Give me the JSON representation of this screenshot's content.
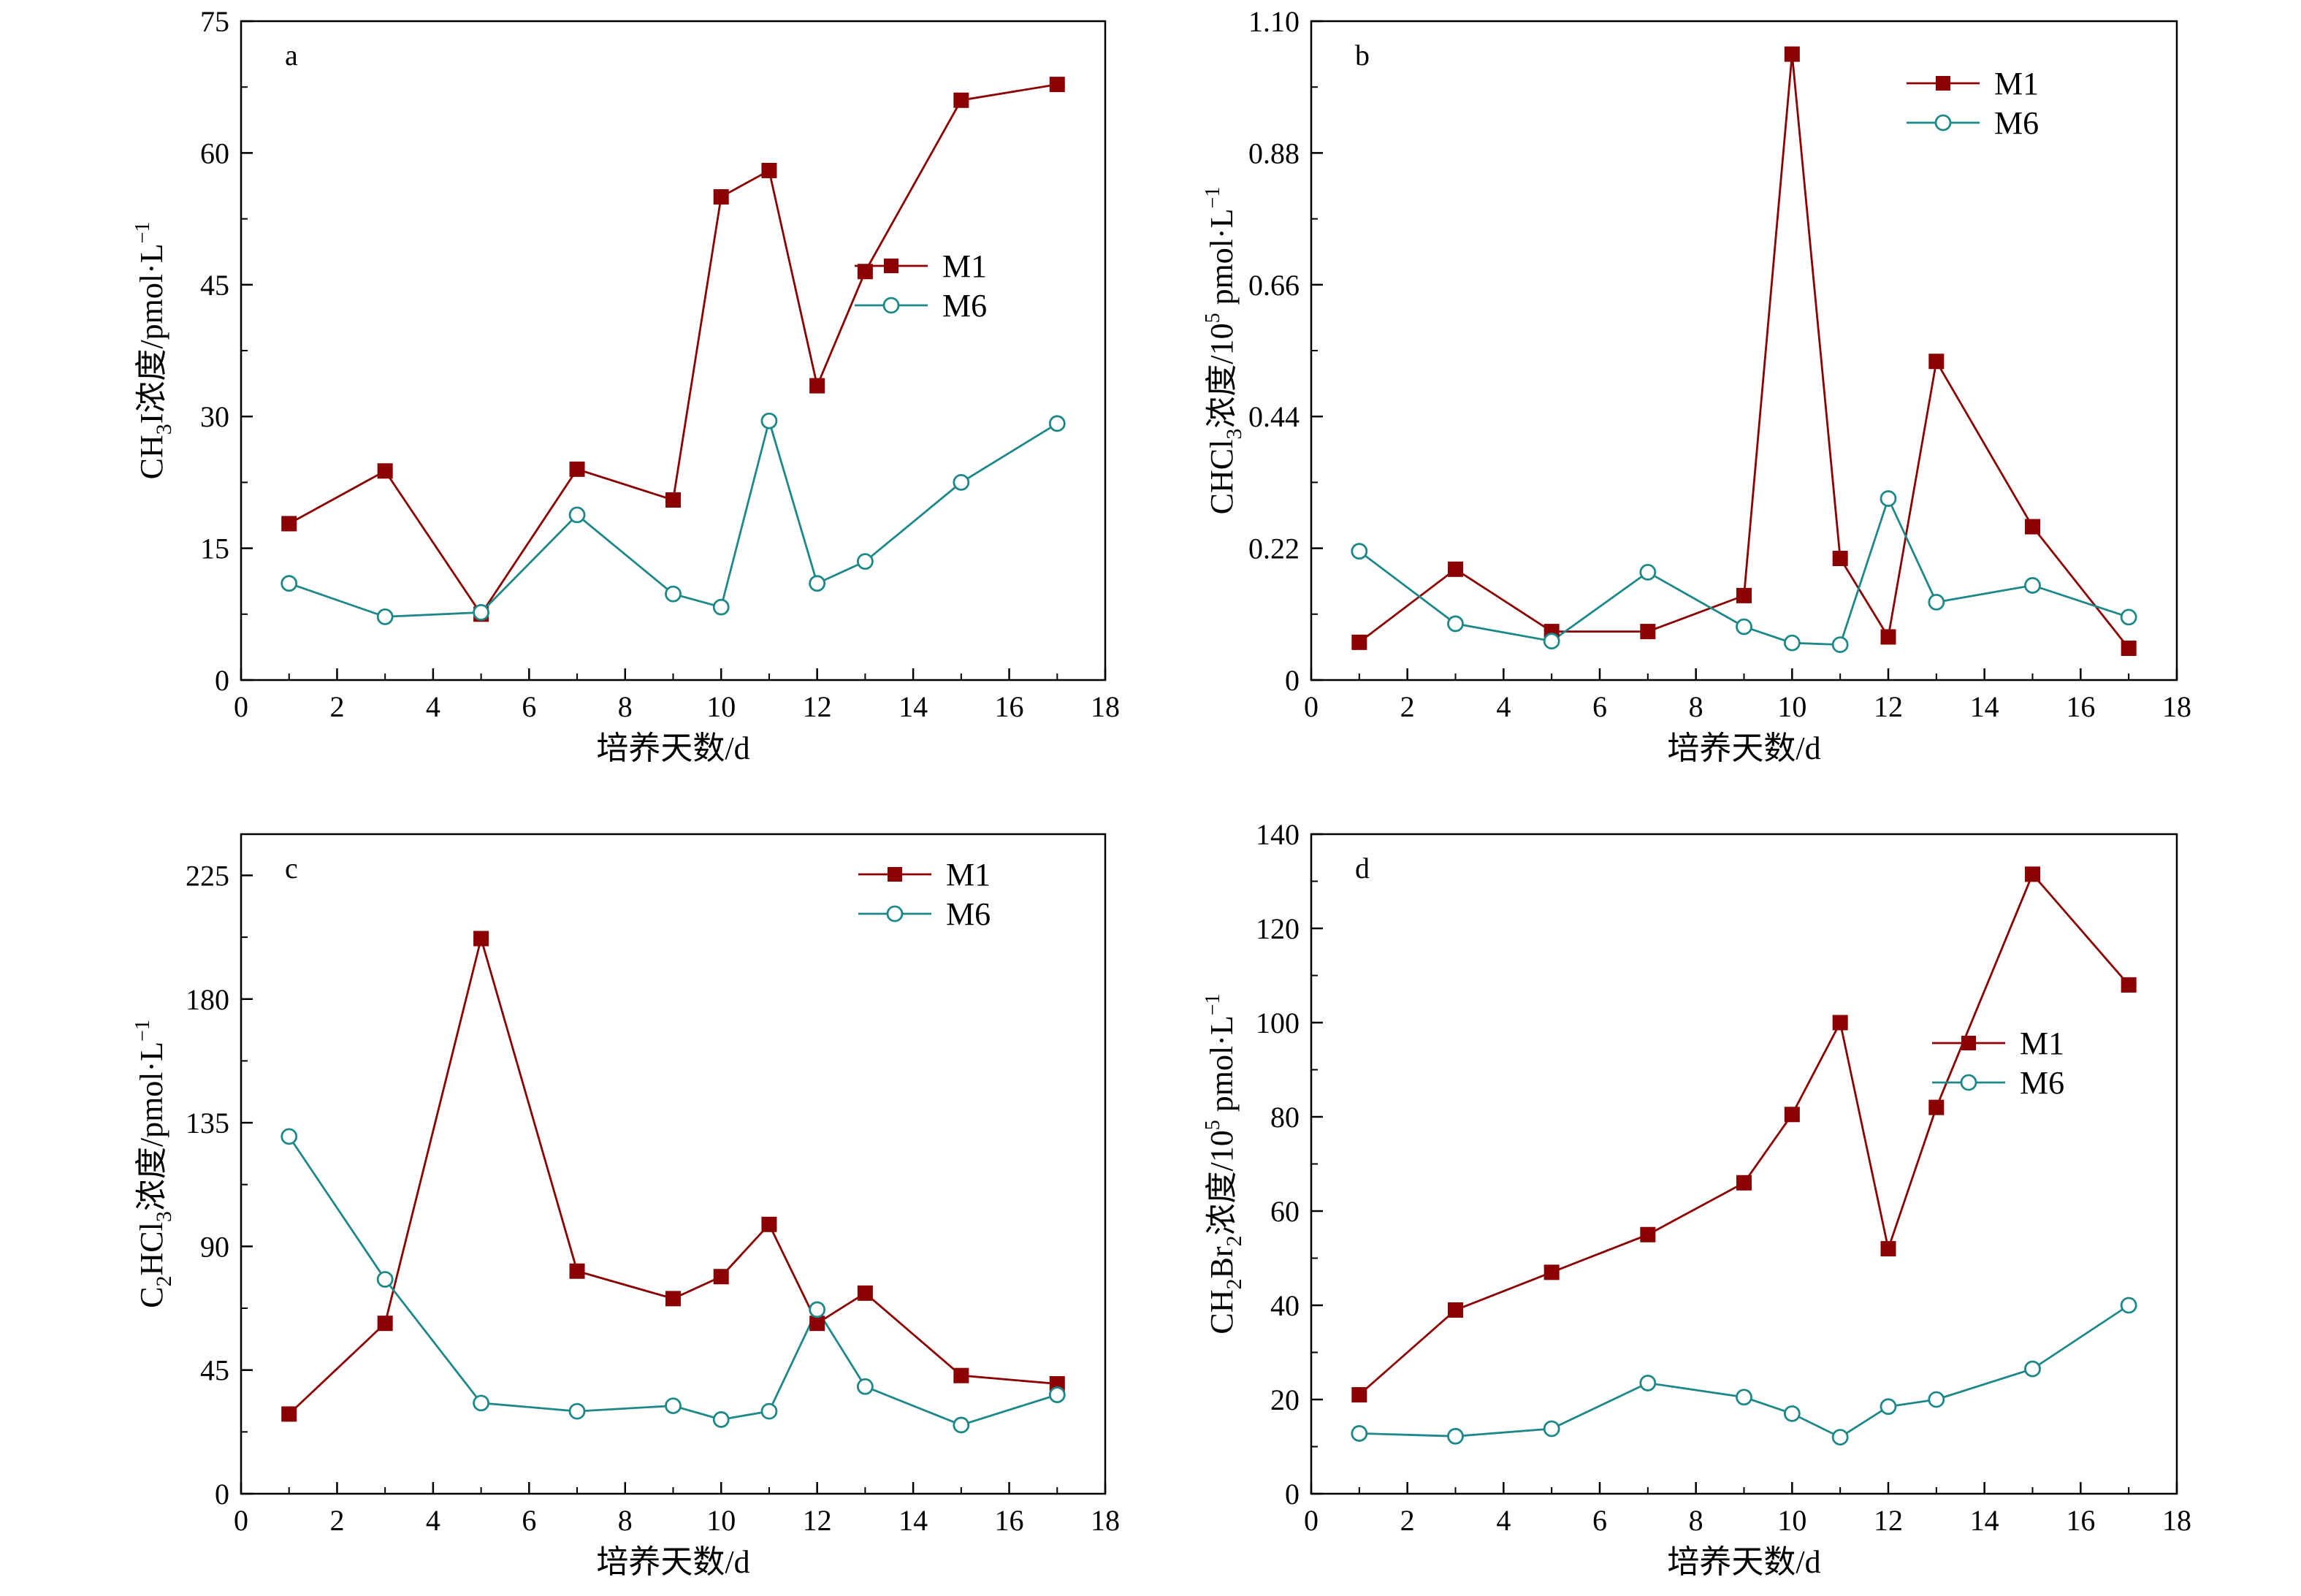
{
  "colors": {
    "M1": "#8B0000",
    "M6": "#1E8888",
    "axis": "#000000"
  },
  "legend_names": [
    "M1",
    "M6"
  ],
  "chart_data": [
    {
      "id": "a",
      "type": "line",
      "panel_label": "a",
      "xlabel": "培养天数/d",
      "ylabel": {
        "parts": [
          {
            "t": "CH"
          },
          {
            "t": "3",
            "sub": true
          },
          {
            "t": "I浓度/pmol·L"
          },
          {
            "t": "−1",
            "sup": true
          }
        ]
      },
      "xlim": [
        0,
        18
      ],
      "xticks": [
        0,
        2,
        4,
        6,
        8,
        10,
        12,
        14,
        16,
        18
      ],
      "ylim": [
        0,
        75
      ],
      "yticks": [
        0,
        15,
        30,
        45,
        60,
        75
      ],
      "ytick_labels": [
        "0",
        "15",
        "30",
        "45",
        "60",
        "75"
      ],
      "legend_position": "right-middle",
      "x": [
        1,
        3,
        5,
        7,
        9,
        10,
        11,
        12,
        13,
        15,
        17
      ],
      "series": [
        {
          "name": "M1",
          "marker": "square",
          "values": [
            17.8,
            23.8,
            7.5,
            24.0,
            20.5,
            55.0,
            58.0,
            33.5,
            46.5,
            66.0,
            67.8
          ]
        },
        {
          "name": "M6",
          "marker": "circle",
          "values": [
            11.0,
            7.2,
            7.7,
            18.8,
            9.8,
            8.3,
            29.5,
            11.0,
            13.5,
            22.5,
            29.2
          ]
        }
      ]
    },
    {
      "id": "b",
      "type": "line",
      "panel_label": "b",
      "xlabel": "培养天数/d",
      "ylabel": {
        "parts": [
          {
            "t": "CHCl"
          },
          {
            "t": "3",
            "sub": true
          },
          {
            "t": "浓度/10"
          },
          {
            "t": "5",
            "sup": true
          },
          {
            "t": " pmol·L"
          },
          {
            "t": "−1",
            "sup": true
          }
        ]
      },
      "xlim": [
        0,
        18
      ],
      "xticks": [
        0,
        2,
        4,
        6,
        8,
        10,
        12,
        14,
        16,
        18
      ],
      "ylim": [
        0,
        1.1
      ],
      "yticks": [
        0,
        0.22,
        0.44,
        0.66,
        0.88,
        1.1
      ],
      "ytick_labels": [
        "0",
        "0.22",
        "0.44",
        "0.66",
        "0.88",
        "1.10"
      ],
      "legend_position": "top-right",
      "x": [
        1,
        3,
        5,
        7,
        9,
        10,
        11,
        12,
        13,
        15,
        17
      ],
      "series": [
        {
          "name": "M1",
          "marker": "square",
          "values": [
            0.063,
            0.185,
            0.081,
            0.081,
            0.141,
            1.045,
            0.203,
            0.072,
            0.532,
            0.256,
            0.053
          ]
        },
        {
          "name": "M6",
          "marker": "circle",
          "values": [
            0.215,
            0.094,
            0.065,
            0.18,
            0.089,
            0.062,
            0.059,
            0.303,
            0.13,
            0.158,
            0.105
          ]
        }
      ]
    },
    {
      "id": "c",
      "type": "line",
      "panel_label": "c",
      "xlabel": "培养天数/d",
      "ylabel": {
        "parts": [
          {
            "t": "C"
          },
          {
            "t": "2",
            "sub": true
          },
          {
            "t": "HCl"
          },
          {
            "t": "3",
            "sub": true
          },
          {
            "t": "浓度/pmol·L"
          },
          {
            "t": "−1",
            "sup": true
          }
        ]
      },
      "xlim": [
        0,
        18
      ],
      "xticks": [
        0,
        2,
        4,
        6,
        8,
        10,
        12,
        14,
        16,
        18
      ],
      "ylim": [
        0,
        240
      ],
      "yticks": [
        0,
        45,
        90,
        135,
        180,
        225
      ],
      "ytick_labels": [
        "0",
        "45",
        "90",
        "135",
        "180",
        "225"
      ],
      "legend_position": "top-right",
      "x": [
        1,
        3,
        5,
        7,
        9,
        10,
        11,
        12,
        13,
        15,
        17
      ],
      "series": [
        {
          "name": "M1",
          "marker": "square",
          "values": [
            29,
            62,
            202,
            81,
            71,
            79,
            98,
            62,
            73,
            43,
            40
          ]
        },
        {
          "name": "M6",
          "marker": "circle",
          "values": [
            130,
            78,
            33,
            30,
            32,
            27,
            30,
            67,
            39,
            25,
            36
          ]
        }
      ]
    },
    {
      "id": "d",
      "type": "line",
      "panel_label": "d",
      "xlabel": "培养天数/d",
      "ylabel": {
        "parts": [
          {
            "t": "CH"
          },
          {
            "t": "2",
            "sub": true
          },
          {
            "t": "Br"
          },
          {
            "t": "2",
            "sub": true
          },
          {
            "t": "浓度/10"
          },
          {
            "t": "5",
            "sup": true
          },
          {
            "t": " pmol·L"
          },
          {
            "t": "−1",
            "sup": true
          }
        ]
      },
      "xlim": [
        0,
        18
      ],
      "xticks": [
        0,
        2,
        4,
        6,
        8,
        10,
        12,
        14,
        16,
        18
      ],
      "ylim": [
        0,
        140
      ],
      "yticks": [
        0,
        20,
        40,
        60,
        80,
        100,
        120,
        140
      ],
      "ytick_labels": [
        "0",
        "20",
        "40",
        "60",
        "80",
        "100",
        "120",
        "140"
      ],
      "legend_position": "right-middle",
      "x": [
        1,
        3,
        5,
        7,
        9,
        10,
        11,
        12,
        13,
        15,
        17
      ],
      "series": [
        {
          "name": "M1",
          "marker": "square",
          "values": [
            21,
            39,
            47,
            55,
            66,
            80.5,
            100,
            52,
            82,
            131.5,
            108
          ]
        },
        {
          "name": "M6",
          "marker": "circle",
          "values": [
            12.8,
            12.2,
            13.8,
            23.5,
            20.5,
            17.0,
            12.0,
            18.5,
            20.0,
            26.5,
            40.0
          ]
        }
      ]
    }
  ]
}
